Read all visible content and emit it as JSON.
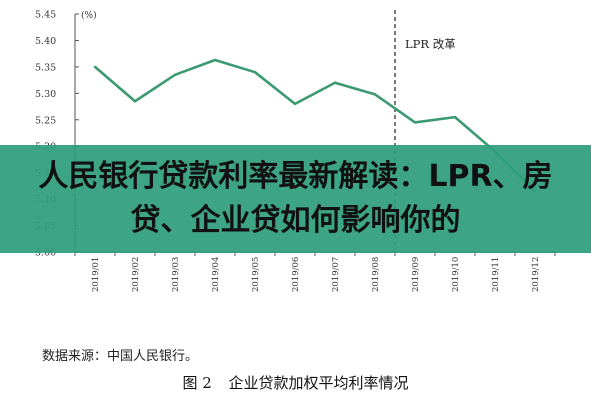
{
  "chart_data": {
    "type": "line",
    "unit": "(%)",
    "categories": [
      "2019/01",
      "2019/02",
      "2019/03",
      "2019/04",
      "2019/05",
      "2019/06",
      "2019/07",
      "2019/08",
      "2019/09",
      "2019/10",
      "2019/11",
      "2019/12"
    ],
    "series": [
      {
        "values": [
          5.35,
          5.285,
          5.335,
          5.363,
          5.34,
          5.28,
          5.32,
          5.298,
          5.245,
          5.255,
          5.19,
          5.115
        ]
      }
    ],
    "ylim": [
      5.0,
      5.45
    ],
    "yticks": [
      "5.00",
      "5.05",
      "5.10",
      "5.15",
      "5.20",
      "5.25",
      "5.30",
      "5.35",
      "5.40",
      "5.45"
    ],
    "annotation": {
      "label": "LPR 改革",
      "x_category": "2019/08",
      "line_style": "dashed"
    },
    "line_color": "#3b9a72"
  },
  "overlay": {
    "text": "人民银行贷款利率最新解读：LPR、房贷、企业贷如何影响你的"
  },
  "source_note": "数据来源：中国人民银行。",
  "figure": {
    "number": "图 2",
    "title": "企业贷款加权平均利率情况"
  }
}
